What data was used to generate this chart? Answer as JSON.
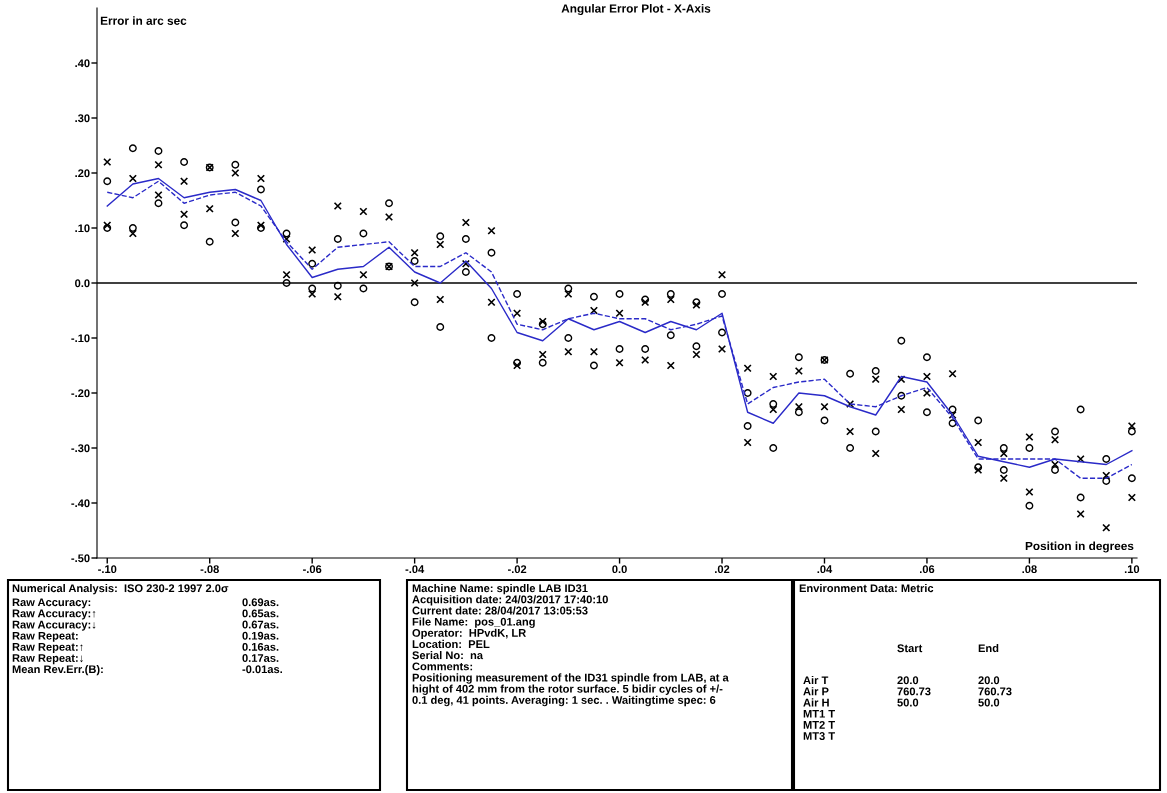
{
  "chart_data": {
    "type": "line",
    "title": "Angular Error Plot - X-Axis",
    "xlabel": "Position in degrees",
    "ylabel": "Error in arc sec",
    "xlim": [
      -0.102,
      0.101
    ],
    "ylim": [
      -0.5,
      0.5
    ],
    "xticks": [
      {
        "value": -0.1,
        "label": "-.10"
      },
      {
        "value": -0.08,
        "label": "-.08"
      },
      {
        "value": -0.06,
        "label": "-.06"
      },
      {
        "value": -0.04,
        "label": "-.04"
      },
      {
        "value": -0.02,
        "label": "-.02"
      },
      {
        "value": 0,
        "label": "0.0"
      },
      {
        "value": 0.02,
        "label": ".02"
      },
      {
        "value": 0.04,
        "label": ".04"
      },
      {
        "value": 0.06,
        "label": ".06"
      },
      {
        "value": 0.08,
        "label": ".08"
      },
      {
        "value": 0.1,
        "label": ".10"
      }
    ],
    "yticks": [
      {
        "value": 0.4,
        "label": ".40"
      },
      {
        "value": 0.3,
        "label": ".30"
      },
      {
        "value": 0.2,
        "label": ".20"
      },
      {
        "value": 0.1,
        "label": ".10"
      },
      {
        "value": 0,
        "label": "0.0"
      },
      {
        "value": -0.1,
        "label": "-.10"
      },
      {
        "value": -0.2,
        "label": "-.20"
      },
      {
        "value": -0.3,
        "label": "-.30"
      },
      {
        "value": -0.4,
        "label": "-.40"
      },
      {
        "value": -0.5,
        "label": "-.50"
      }
    ],
    "x": [
      -0.1,
      -0.095,
      -0.09,
      -0.085,
      -0.08,
      -0.075,
      -0.07,
      -0.065,
      -0.06,
      -0.055,
      -0.05,
      -0.045,
      -0.04,
      -0.035,
      -0.03,
      -0.025,
      -0.02,
      -0.015,
      -0.01,
      -0.005,
      0,
      0.005,
      0.01,
      0.015,
      0.02,
      0.025,
      0.03,
      0.035,
      0.04,
      0.045,
      0.05,
      0.055,
      0.06,
      0.065,
      0.07,
      0.075,
      0.08,
      0.085,
      0.09,
      0.095,
      0.1
    ],
    "series": [
      {
        "type": "scatter",
        "marker": "circle",
        "color": "#000000",
        "x": [
          -0.1,
          -0.1,
          -0.095,
          -0.095,
          -0.09,
          -0.09,
          -0.085,
          -0.085,
          -0.08,
          -0.08,
          -0.075,
          -0.075,
          -0.07,
          -0.07,
          -0.065,
          -0.065,
          -0.06,
          -0.06,
          -0.055,
          -0.055,
          -0.05,
          -0.05,
          -0.045,
          -0.045,
          -0.04,
          -0.04,
          -0.035,
          -0.035,
          -0.03,
          -0.03,
          -0.025,
          -0.025,
          -0.02,
          -0.02,
          -0.015,
          -0.015,
          -0.01,
          -0.01,
          -0.005,
          -0.005,
          0,
          0,
          0.005,
          0.005,
          0.01,
          0.01,
          0.015,
          0.015,
          0.02,
          0.02,
          0.025,
          0.025,
          0.03,
          0.03,
          0.035,
          0.035,
          0.04,
          0.04,
          0.045,
          0.045,
          0.05,
          0.05,
          0.055,
          0.055,
          0.06,
          0.06,
          0.065,
          0.065,
          0.07,
          0.07,
          0.075,
          0.075,
          0.08,
          0.08,
          0.085,
          0.085,
          0.09,
          0.09,
          0.095,
          0.095,
          0.1,
          0.1
        ],
        "values": [
          0.185,
          0.1,
          0.245,
          0.1,
          0.24,
          0.145,
          0.22,
          0.105,
          0.21,
          0.075,
          0.215,
          0.11,
          0.17,
          0.1,
          0.09,
          0.0,
          0.035,
          -0.01,
          0.08,
          -0.005,
          0.09,
          -0.01,
          0.145,
          0.03,
          0.04,
          -0.035,
          0.085,
          -0.08,
          0.08,
          0.02,
          0.055,
          -0.1,
          -0.02,
          -0.145,
          -0.075,
          -0.145,
          -0.01,
          -0.1,
          -0.025,
          -0.15,
          -0.02,
          -0.12,
          -0.03,
          -0.12,
          -0.02,
          -0.095,
          -0.035,
          -0.115,
          -0.02,
          -0.09,
          -0.2,
          -0.26,
          -0.22,
          -0.3,
          -0.135,
          -0.235,
          -0.14,
          -0.25,
          -0.165,
          -0.3,
          -0.16,
          -0.27,
          -0.105,
          -0.205,
          -0.135,
          -0.235,
          -0.23,
          -0.255,
          -0.25,
          -0.335,
          -0.3,
          -0.34,
          -0.3,
          -0.405,
          -0.27,
          -0.34,
          -0.23,
          -0.39,
          -0.32,
          -0.36,
          -0.27,
          -0.355
        ]
      },
      {
        "type": "scatter",
        "marker": "cross",
        "color": "#000000",
        "x": [
          -0.1,
          -0.1,
          -0.095,
          -0.095,
          -0.09,
          -0.09,
          -0.085,
          -0.085,
          -0.08,
          -0.08,
          -0.075,
          -0.075,
          -0.07,
          -0.07,
          -0.065,
          -0.065,
          -0.06,
          -0.06,
          -0.055,
          -0.055,
          -0.05,
          -0.05,
          -0.045,
          -0.045,
          -0.04,
          -0.04,
          -0.035,
          -0.035,
          -0.03,
          -0.03,
          -0.025,
          -0.025,
          -0.02,
          -0.02,
          -0.015,
          -0.015,
          -0.01,
          -0.01,
          -0.005,
          -0.005,
          0,
          0,
          0.005,
          0.005,
          0.01,
          0.01,
          0.015,
          0.015,
          0.02,
          0.02,
          0.025,
          0.025,
          0.03,
          0.03,
          0.035,
          0.035,
          0.04,
          0.04,
          0.045,
          0.045,
          0.05,
          0.05,
          0.055,
          0.055,
          0.06,
          0.06,
          0.065,
          0.065,
          0.07,
          0.07,
          0.075,
          0.075,
          0.08,
          0.08,
          0.085,
          0.085,
          0.09,
          0.09,
          0.095,
          0.095,
          0.1,
          0.1
        ],
        "values": [
          0.22,
          0.105,
          0.19,
          0.09,
          0.215,
          0.16,
          0.185,
          0.125,
          0.21,
          0.135,
          0.2,
          0.09,
          0.19,
          0.105,
          0.08,
          0.015,
          0.06,
          -0.02,
          0.14,
          -0.025,
          0.13,
          0.015,
          0.12,
          0.03,
          0.055,
          0.0,
          0.07,
          -0.03,
          0.11,
          0.035,
          0.095,
          -0.035,
          -0.055,
          -0.15,
          -0.07,
          -0.13,
          -0.02,
          -0.125,
          -0.05,
          -0.125,
          -0.055,
          -0.145,
          -0.035,
          -0.14,
          -0.03,
          -0.15,
          -0.04,
          -0.13,
          0.015,
          -0.12,
          -0.155,
          -0.29,
          -0.17,
          -0.23,
          -0.16,
          -0.225,
          -0.14,
          -0.225,
          -0.22,
          -0.27,
          -0.175,
          -0.31,
          -0.175,
          -0.23,
          -0.17,
          -0.2,
          -0.165,
          -0.24,
          -0.29,
          -0.34,
          -0.31,
          -0.355,
          -0.28,
          -0.38,
          -0.285,
          -0.33,
          -0.32,
          -0.42,
          -0.35,
          -0.445,
          -0.26,
          -0.39
        ]
      },
      {
        "line_style": "solid",
        "color": "#2a2ac8",
        "values": [
          0.14,
          0.18,
          0.19,
          0.155,
          0.165,
          0.17,
          0.15,
          0.07,
          0.01,
          0.025,
          0.03,
          0.065,
          0.02,
          0.0,
          0.04,
          -0.01,
          -0.09,
          -0.105,
          -0.065,
          -0.085,
          -0.07,
          -0.09,
          -0.07,
          -0.085,
          -0.055,
          -0.235,
          -0.255,
          -0.2,
          -0.205,
          -0.225,
          -0.24,
          -0.17,
          -0.18,
          -0.24,
          -0.315,
          -0.325,
          -0.335,
          -0.32,
          -0.325,
          -0.33,
          -0.305
        ]
      },
      {
        "line_style": "dashed",
        "color": "#2a2ac8",
        "values": [
          0.165,
          0.155,
          0.185,
          0.145,
          0.16,
          0.165,
          0.14,
          0.075,
          0.025,
          0.065,
          0.07,
          0.075,
          0.03,
          0.03,
          0.055,
          0.02,
          -0.075,
          -0.085,
          -0.065,
          -0.055,
          -0.065,
          -0.065,
          -0.085,
          -0.075,
          -0.06,
          -0.22,
          -0.19,
          -0.18,
          -0.175,
          -0.22,
          -0.225,
          -0.205,
          -0.19,
          -0.245,
          -0.32,
          -0.32,
          -0.32,
          -0.32,
          -0.355,
          -0.355,
          -0.33
        ]
      }
    ],
    "ref_lines": [
      {
        "axis": "y",
        "value": 0,
        "color": "#000000",
        "line_style": "solid"
      }
    ],
    "annotations": [
      "Numerical Analysis:  ISO 230-2 1997 2.0σ",
      "Raw Accuracy:\nRaw Accuracy:↑\nRaw Accuracy:↓\nRaw Repeat:\nRaw Repeat:↑\nRaw Repeat:↓\nMean Rev.Err.(B):",
      "0.69as.\n0.65as.\n0.67as.\n0.19as.\n0.16as.\n0.17as.\n-0.01as.",
      "Machine Name: spindle LAB ID31\nAcquisition date: 24/03/2017 17:40:10\nCurrent date: 28/04/2017 13:05:53\nFile Name:  pos_01.ang\nOperator:  HPvdK, LR\nLocation:  PEL\nSerial No:  na\nComments:\nPositioning measurement of the ID31 spindle from LAB, at a\nhight of 402 mm from the rotor surface. 5 bidir cycles of +/-\n0.1 deg, 41 points. Averaging: 1 sec. . Waitingtime spec: 6",
      "Environment Data: Metric",
      "Air T\nAir P\nAir H\nMT1 T\nMT2 T\nMT3 T",
      "Start",
      "20.0\n760.73\n50.0",
      "End",
      "20.0\n760.73\n50.0"
    ]
  }
}
